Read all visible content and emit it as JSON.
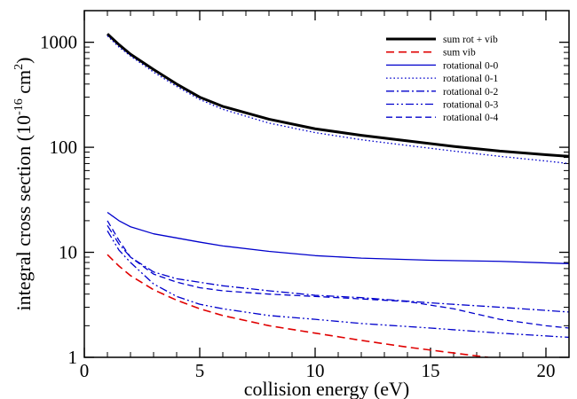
{
  "chart_data": {
    "type": "line",
    "title": "",
    "xlabel": "collision energy (eV)",
    "ylabel": {
      "prefix": "integral cross section (10",
      "exp1": "-16",
      "mid": " cm",
      "exp2": "2",
      "suffix": ")"
    },
    "xlim": [
      0,
      21
    ],
    "ylim": [
      1,
      2000
    ],
    "yscale": "log",
    "grid": false,
    "legend_position": "top-right",
    "x_ticks": [
      {
        "value": 0,
        "label": "0"
      },
      {
        "value": 5,
        "label": "5"
      },
      {
        "value": 10,
        "label": "10"
      },
      {
        "value": 15,
        "label": "15"
      },
      {
        "value": 20,
        "label": "20"
      }
    ],
    "y_ticks": [
      {
        "value": 1,
        "label": "1"
      },
      {
        "value": 10,
        "label": "10"
      },
      {
        "value": 100,
        "label": "100"
      },
      {
        "value": 1000,
        "label": "1000"
      }
    ],
    "series": [
      {
        "name": "sum rot + vib",
        "color": "#000000",
        "dash": "solid",
        "width": 3,
        "points": [
          [
            1,
            1200
          ],
          [
            1.5,
            950
          ],
          [
            2,
            770
          ],
          [
            3,
            550
          ],
          [
            4,
            400
          ],
          [
            5,
            300
          ],
          [
            6,
            245
          ],
          [
            8,
            185
          ],
          [
            10,
            150
          ],
          [
            12,
            130
          ],
          [
            14,
            115
          ],
          [
            16,
            102
          ],
          [
            18,
            92
          ],
          [
            20,
            85
          ],
          [
            21,
            82
          ]
        ]
      },
      {
        "name": "sum vib",
        "color": "#e00000",
        "dash": "dashed",
        "width": 1.6,
        "points": [
          [
            1,
            9.5
          ],
          [
            1.5,
            7.4
          ],
          [
            2,
            6.0
          ],
          [
            3,
            4.4
          ],
          [
            4,
            3.5
          ],
          [
            5,
            2.9
          ],
          [
            6,
            2.5
          ],
          [
            8,
            2.0
          ],
          [
            10,
            1.7
          ],
          [
            12,
            1.45
          ],
          [
            14,
            1.25
          ],
          [
            16,
            1.1
          ],
          [
            17.5,
            1.0
          ]
        ]
      },
      {
        "name": "rotational 0-0",
        "color": "#0000cc",
        "dash": "solid",
        "width": 1.3,
        "points": [
          [
            1,
            24
          ],
          [
            1.5,
            20
          ],
          [
            2,
            17.5
          ],
          [
            3,
            15
          ],
          [
            5,
            12.5
          ],
          [
            6,
            11.5
          ],
          [
            8,
            10.2
          ],
          [
            10,
            9.3
          ],
          [
            12,
            8.8
          ],
          [
            15,
            8.4
          ],
          [
            18,
            8.2
          ],
          [
            21,
            7.8
          ]
        ]
      },
      {
        "name": "rotational 0-1",
        "color": "#0000cc",
        "dash": "dotted",
        "width": 1.3,
        "points": [
          [
            1,
            1150
          ],
          [
            1.5,
            900
          ],
          [
            2,
            740
          ],
          [
            3,
            520
          ],
          [
            4,
            380
          ],
          [
            5,
            285
          ],
          [
            6,
            230
          ],
          [
            8,
            170
          ],
          [
            10,
            138
          ],
          [
            12,
            118
          ],
          [
            14,
            104
          ],
          [
            16,
            92
          ],
          [
            18,
            82
          ],
          [
            20,
            74
          ],
          [
            21,
            70
          ]
        ]
      },
      {
        "name": "rotational 0-2",
        "color": "#0000cc",
        "dash": "dashdot",
        "width": 1.3,
        "points": [
          [
            1,
            18
          ],
          [
            1.5,
            12
          ],
          [
            2,
            9
          ],
          [
            3,
            6.5
          ],
          [
            4,
            5.6
          ],
          [
            6,
            4.8
          ],
          [
            8,
            4.3
          ],
          [
            10,
            3.9
          ],
          [
            12,
            3.7
          ],
          [
            15,
            3.3
          ],
          [
            18,
            3.0
          ],
          [
            21,
            2.7
          ]
        ]
      },
      {
        "name": "rotational 0-3",
        "color": "#0000cc",
        "dash": "dashdotdot",
        "width": 1.3,
        "points": [
          [
            1,
            16
          ],
          [
            1.5,
            10.5
          ],
          [
            2,
            8
          ],
          [
            3,
            5
          ],
          [
            4,
            3.8
          ],
          [
            5,
            3.2
          ],
          [
            6,
            2.9
          ],
          [
            8,
            2.5
          ],
          [
            10,
            2.3
          ],
          [
            12,
            2.1
          ],
          [
            15,
            1.9
          ],
          [
            18,
            1.7
          ],
          [
            21,
            1.55
          ]
        ]
      },
      {
        "name": "rotational 0-4",
        "color": "#0000cc",
        "dash": "longdash",
        "width": 1.3,
        "points": [
          [
            1,
            20
          ],
          [
            1.5,
            13
          ],
          [
            2,
            9
          ],
          [
            3,
            6.2
          ],
          [
            4,
            5.2
          ],
          [
            5,
            4.6
          ],
          [
            6,
            4.3
          ],
          [
            8,
            4.0
          ],
          [
            10,
            3.8
          ],
          [
            12,
            3.6
          ],
          [
            14,
            3.4
          ],
          [
            16,
            2.9
          ],
          [
            18,
            2.3
          ],
          [
            20,
            2.0
          ],
          [
            21,
            1.9
          ]
        ]
      }
    ]
  }
}
